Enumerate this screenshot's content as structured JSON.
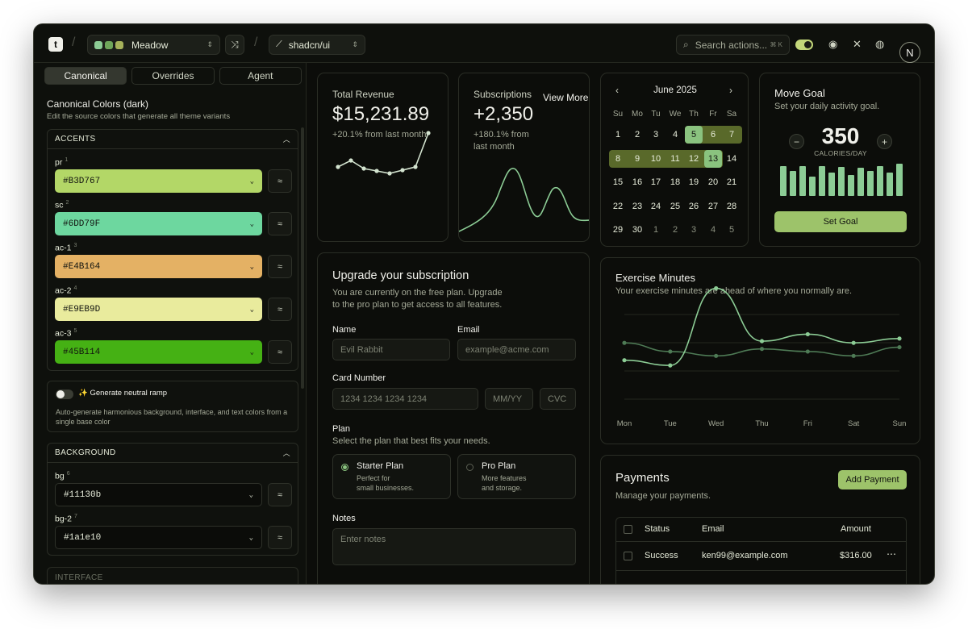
{
  "topbar": {
    "logo_letter": "t",
    "theme_name": "Meadow",
    "theme_dots": [
      "#8ccc95",
      "#6fa65a",
      "#a6b25a"
    ],
    "registry": "shadcn/ui",
    "search_placeholder": "Search actions...",
    "search_kbd": "⌘ K",
    "avatar_letter": "N"
  },
  "sidebar": {
    "tabs": [
      "Canonical",
      "Overrides",
      "Agent"
    ],
    "title": "Canonical Colors (dark)",
    "subtitle": "Edit the source colors that generate all theme variants",
    "accents_header": "ACCENTS",
    "accents": [
      {
        "label": "pr",
        "num": "1",
        "value": "#B3D767"
      },
      {
        "label": "sc",
        "num": "2",
        "value": "#6DD79F"
      },
      {
        "label": "ac-1",
        "num": "3",
        "value": "#E4B164"
      },
      {
        "label": "ac-2",
        "num": "4",
        "value": "#E9EB9D"
      },
      {
        "label": "ac-3",
        "num": "5",
        "value": "#45B114"
      }
    ],
    "neutral_title": "Generate neutral ramp",
    "neutral_desc": "Auto-generate harmonious background, interface, and text colors from a single base color",
    "background_header": "BACKGROUND",
    "background": [
      {
        "label": "bg",
        "num": "6",
        "value": "#11130b"
      },
      {
        "label": "bg-2",
        "num": "7",
        "value": "#1a1e10"
      }
    ],
    "next_header": "INTERFACE"
  },
  "revenue": {
    "title": "Total Revenue",
    "value": "$15,231.89",
    "change": "+20.1% from last month",
    "points": [
      30,
      38,
      28,
      25,
      22,
      26,
      30,
      72
    ]
  },
  "subscriptions": {
    "title": "Subscriptions",
    "value": "+2,350",
    "change_1": "+180.1% from",
    "change_2": "last month",
    "view_more": "View More"
  },
  "calendar": {
    "month": "June 2025",
    "days": [
      "Su",
      "Mo",
      "Tu",
      "We",
      "Th",
      "Fr",
      "Sa"
    ],
    "weeks": [
      [
        "1",
        "2",
        "3",
        "4",
        "5",
        "6",
        "7"
      ],
      [
        "8",
        "9",
        "10",
        "11",
        "12",
        "13",
        "14"
      ],
      [
        "15",
        "16",
        "17",
        "18",
        "19",
        "20",
        "21"
      ],
      [
        "22",
        "23",
        "24",
        "25",
        "26",
        "27",
        "28"
      ],
      [
        "29",
        "30",
        "1",
        "2",
        "3",
        "4",
        "5"
      ]
    ]
  },
  "goal": {
    "title": "Move Goal",
    "subtitle": "Set your daily activity goal.",
    "value": "350",
    "unit": "CALORIES/DAY",
    "minus": "−",
    "plus": "+",
    "button": "Set Goal",
    "bars": [
      0.85,
      0.7,
      0.85,
      0.55,
      0.85,
      0.65,
      0.82,
      0.6,
      0.8,
      0.7,
      0.85,
      0.65,
      0.92
    ]
  },
  "upgrade": {
    "title": "Upgrade your subscription",
    "desc_1": "You are currently on the free plan. Upgrade",
    "desc_2": "to the pro plan to get access to all features.",
    "name_label": "Name",
    "name_placeholder": "Evil Rabbit",
    "email_label": "Email",
    "email_placeholder": "example@acme.com",
    "card_label": "Card Number",
    "card_placeholder": "1234 1234 1234 1234",
    "mm_placeholder": "MM/YY",
    "cvc_placeholder": "CVC",
    "plan_label": "Plan",
    "plan_desc": "Select the plan that best fits your needs.",
    "plans": [
      {
        "name": "Starter Plan",
        "d1": "Perfect for",
        "d2": "small businesses."
      },
      {
        "name": "Pro Plan",
        "d1": "More features",
        "d2": "and storage."
      }
    ],
    "notes_label": "Notes",
    "notes_placeholder": "Enter notes"
  },
  "exercise": {
    "title": "Exercise Minutes",
    "subtitle": "Your exercise minutes are ahead of where you normally are.",
    "days": [
      "Mon",
      "Tue",
      "Wed",
      "Thu",
      "Fri",
      "Sat",
      "Sun"
    ],
    "series_a": [
      45,
      39,
      128,
      67,
      75,
      65,
      70
    ],
    "series_b": [
      65,
      55,
      50,
      58,
      55,
      50,
      60
    ]
  },
  "payments": {
    "title": "Payments",
    "subtitle": "Manage your payments.",
    "add_button": "Add Payment",
    "cols": [
      "Status",
      "Email",
      "Amount"
    ],
    "rows": [
      {
        "status": "Success",
        "email": "ken99@example.com",
        "amount": "$316.00"
      }
    ]
  }
}
